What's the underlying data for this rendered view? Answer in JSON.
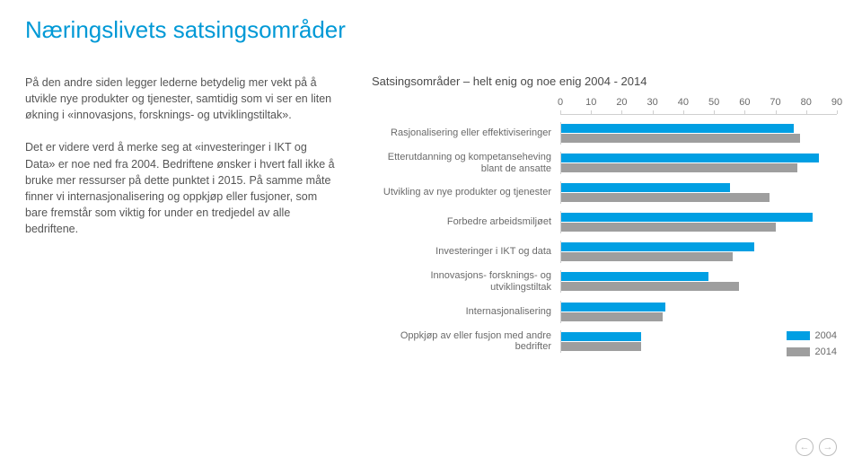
{
  "page": {
    "title": "Næringslivets satsingsområder"
  },
  "body": {
    "p1": "På den andre siden legger lederne betydelig mer vekt på å utvikle nye produkter og tjenester, samtidig som vi ser en liten økning i «innovasjons, forsknings- og utviklingstiltak».",
    "p2": "Det er videre verd å merke seg at «investeringer i IKT og Data» er noe ned fra 2004. Bedriftene ønsker i hvert fall ikke å bruke mer ressurser på dette punktet i 2015. På samme måte finner vi internasjonalisering og oppkjøp eller fusjoner, som bare fremstår som viktig for under en tredjedel av alle bedriftene."
  },
  "chart": {
    "title": "Satsingsområder – helt enig og noe enig 2004 - 2014",
    "type": "grouped-horizontal-bar",
    "xlim": [
      0,
      90
    ],
    "xtick_step": 10,
    "xticks": [
      0,
      10,
      20,
      30,
      40,
      50,
      60,
      70,
      80,
      90
    ],
    "axis_color": "#cfcfcf",
    "label_fontsize": 11,
    "background_color": "#ffffff",
    "series": [
      {
        "name": "2004",
        "color": "#009fe3"
      },
      {
        "name": "2014",
        "color": "#9e9e9e"
      }
    ],
    "categories": [
      {
        "label": "Rasjonalisering eller effektiviseringer",
        "values": [
          76,
          78
        ]
      },
      {
        "label": "Etterutdanning og kompetanseheving blant de ansatte",
        "values": [
          84,
          77
        ]
      },
      {
        "label": "Utvikling av nye produkter og tjenester",
        "values": [
          55,
          68
        ]
      },
      {
        "label": "Forbedre arbeidsmiljøet",
        "values": [
          82,
          70
        ]
      },
      {
        "label": "Investeringer i IKT og data",
        "values": [
          63,
          56
        ]
      },
      {
        "label": "Innovasjons- forsknings- og utviklingstiltak",
        "values": [
          48,
          58
        ]
      },
      {
        "label": "Internasjonalisering",
        "values": [
          34,
          33
        ]
      },
      {
        "label": "Oppkjøp av eller fusjon med andre bedrifter",
        "values": [
          26,
          26
        ]
      }
    ],
    "legend": {
      "items": [
        {
          "label": "2004",
          "color": "#009fe3"
        },
        {
          "label": "2014",
          "color": "#9e9e9e"
        }
      ]
    }
  },
  "nav": {
    "prev": "←",
    "next": "→"
  }
}
